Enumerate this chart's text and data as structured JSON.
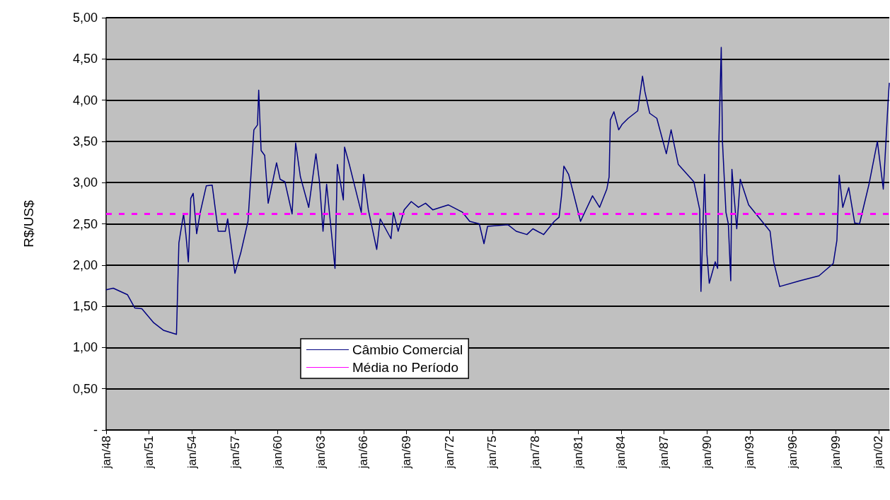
{
  "chart_data": {
    "type": "line",
    "ylabel": "R$/US$",
    "x": [
      "1948-01",
      "1948-07",
      "1949-07",
      "1950-01",
      "1950-07",
      "1951-05",
      "1952-01",
      "1952-12",
      "1953-02",
      "1953-05",
      "1953-06",
      "1953-08",
      "1953-10",
      "1953-12",
      "1954-02",
      "1954-05",
      "1954-08",
      "1955-01",
      "1955-06",
      "1955-11",
      "1956-05",
      "1956-07",
      "1957-01",
      "1957-06",
      "1957-12",
      "1958-05",
      "1958-08",
      "1958-09",
      "1958-11",
      "1959-02",
      "1959-05",
      "1959-12",
      "1960-03",
      "1960-07",
      "1961-01",
      "1961-04",
      "1961-08",
      "1962-03",
      "1962-09",
      "1962-12",
      "1963-03",
      "1963-06",
      "1964-01",
      "1964-03",
      "1964-08",
      "1964-09",
      "1965-01",
      "1965-11",
      "1966-01",
      "1966-05",
      "1966-12",
      "1967-03",
      "1967-12",
      "1968-02",
      "1968-06",
      "1968-11",
      "1969-05",
      "1969-11",
      "1970-05",
      "1970-11",
      "1971-12",
      "1972-12",
      "1973-06",
      "1974-02",
      "1974-06",
      "1974-09",
      "1976-02",
      "1976-09",
      "1977-06",
      "1977-11",
      "1978-08",
      "1979-05",
      "1979-09",
      "1979-11",
      "1980-01",
      "1980-05",
      "1981-03",
      "1982-01",
      "1982-07",
      "1983-01",
      "1983-03",
      "1983-04",
      "1983-07",
      "1983-11",
      "1984-02",
      "1984-07",
      "1985-03",
      "1985-07",
      "1985-09",
      "1986-01",
      "1986-07",
      "1987-03",
      "1987-07",
      "1988-01",
      "1989-02",
      "1989-07",
      "1989-08",
      "1989-11",
      "1990-01",
      "1990-03",
      "1990-08",
      "1990-10",
      "1990-11",
      "1991-01",
      "1991-02",
      "1991-05",
      "1991-07",
      "1991-09",
      "1991-10",
      "1992-02",
      "1992-05",
      "1992-12",
      "1994-06",
      "1994-09",
      "1995-02",
      "1996-07",
      "1997-11",
      "1998-11",
      "1999-02",
      "1999-04",
      "1999-07",
      "1999-12",
      "2000-05",
      "2000-09",
      "2001-05",
      "2001-12",
      "2002-05",
      "2002-06",
      "2002-09",
      "2002-10"
    ],
    "series": [
      {
        "name": "Câmbio Comercial",
        "color": "#000080",
        "values": [
          1.7,
          1.72,
          1.64,
          1.48,
          1.47,
          1.3,
          1.21,
          1.16,
          2.27,
          2.53,
          2.62,
          2.36,
          2.04,
          2.81,
          2.87,
          2.38,
          2.64,
          2.96,
          2.97,
          2.41,
          2.41,
          2.56,
          1.9,
          2.15,
          2.53,
          3.64,
          3.7,
          4.12,
          3.39,
          3.33,
          2.75,
          3.24,
          3.04,
          3.01,
          2.62,
          3.48,
          3.07,
          2.7,
          3.35,
          3.01,
          2.41,
          2.98,
          1.96,
          3.22,
          2.79,
          3.43,
          3.22,
          2.64,
          3.1,
          2.67,
          2.19,
          2.56,
          2.32,
          2.64,
          2.41,
          2.67,
          2.77,
          2.7,
          2.75,
          2.67,
          2.73,
          2.64,
          2.53,
          2.5,
          2.26,
          2.47,
          2.49,
          2.41,
          2.37,
          2.44,
          2.37,
          2.53,
          2.58,
          2.84,
          3.2,
          3.1,
          2.53,
          2.84,
          2.7,
          2.92,
          3.07,
          3.76,
          3.86,
          3.64,
          3.71,
          3.78,
          3.87,
          4.29,
          4.1,
          3.84,
          3.78,
          3.35,
          3.64,
          3.22,
          3.01,
          2.67,
          1.68,
          3.1,
          2.13,
          1.78,
          2.04,
          1.96,
          3.5,
          4.64,
          3.5,
          2.64,
          2.5,
          1.81,
          3.16,
          2.44,
          3.04,
          2.73,
          2.41,
          2.04,
          1.74,
          1.81,
          1.87,
          2.02,
          2.3,
          3.09,
          2.7,
          2.94,
          2.51,
          2.5,
          2.98,
          3.5,
          2.92,
          3.18,
          3.99,
          4.21
        ]
      }
    ],
    "ref_lines": [
      {
        "axis": "y",
        "value": 2.62,
        "label": "Média no Período",
        "color": "#ff00ff",
        "line_style": "dashed"
      }
    ],
    "xlim": [
      "1948-01",
      "2002-10"
    ],
    "xticks": [
      {
        "value": "1948-01",
        "label": "jan/48"
      },
      {
        "value": "1951-01",
        "label": "jan/51"
      },
      {
        "value": "1954-01",
        "label": "jan/54"
      },
      {
        "value": "1957-01",
        "label": "jan/57"
      },
      {
        "value": "1960-01",
        "label": "jan/60"
      },
      {
        "value": "1963-01",
        "label": "jan/63"
      },
      {
        "value": "1966-01",
        "label": "jan/66"
      },
      {
        "value": "1969-01",
        "label": "jan/69"
      },
      {
        "value": "1972-01",
        "label": "jan/72"
      },
      {
        "value": "1975-01",
        "label": "jan/75"
      },
      {
        "value": "1978-01",
        "label": "jan/78"
      },
      {
        "value": "1981-01",
        "label": "jan/81"
      },
      {
        "value": "1984-01",
        "label": "jan/84"
      },
      {
        "value": "1987-01",
        "label": "jan/87"
      },
      {
        "value": "1990-01",
        "label": "jan/90"
      },
      {
        "value": "1993-01",
        "label": "jan/93"
      },
      {
        "value": "1996-01",
        "label": "jan/96"
      },
      {
        "value": "1999-01",
        "label": "jan/99"
      },
      {
        "value": "2002-01",
        "label": "jan/02"
      }
    ],
    "ylim": [
      0,
      5
    ],
    "yticks": [
      {
        "value": 0,
        "label": "-"
      },
      {
        "value": 0.5,
        "label": "0,50"
      },
      {
        "value": 1,
        "label": "1,00"
      },
      {
        "value": 1.5,
        "label": "1,50"
      },
      {
        "value": 2,
        "label": "2,00"
      },
      {
        "value": 2.5,
        "label": "2,50"
      },
      {
        "value": 3,
        "label": "3,00"
      },
      {
        "value": 3.5,
        "label": "3,50"
      },
      {
        "value": 4,
        "label": "4,00"
      },
      {
        "value": 4.5,
        "label": "4,50"
      },
      {
        "value": 5,
        "label": "5,00"
      }
    ],
    "grid": "y",
    "legend": "bottom",
    "line_style": "solid",
    "marker": "none"
  }
}
